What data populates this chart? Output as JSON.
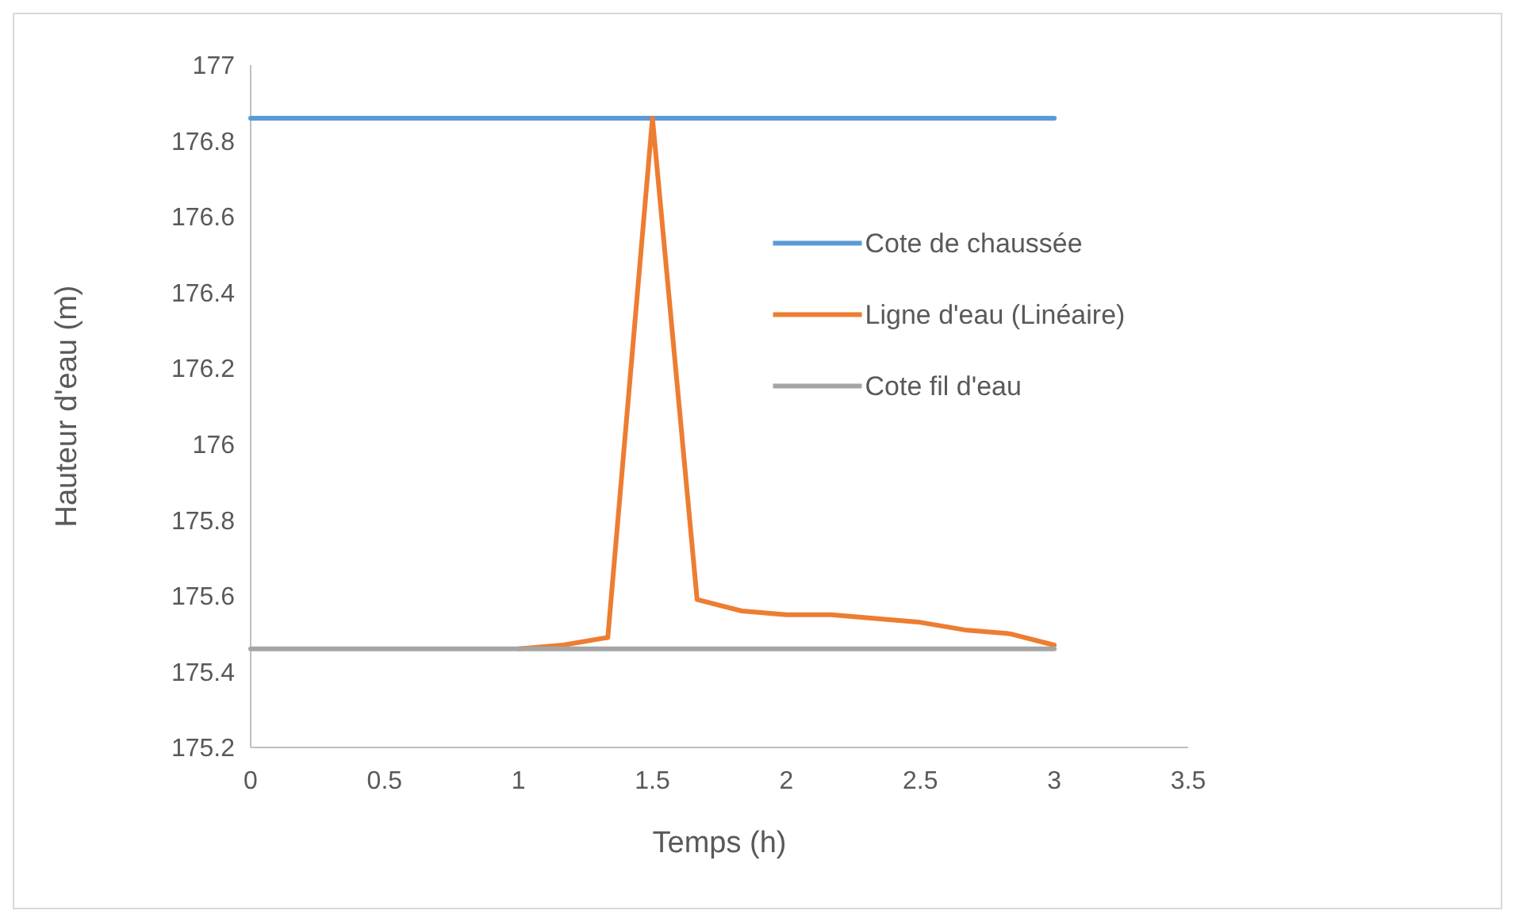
{
  "chart_data": {
    "type": "line",
    "xlabel": "Temps (h)",
    "ylabel": "Hauteur d'eau (m)",
    "xlim": [
      0,
      3.5
    ],
    "xticks": [
      0,
      0.5,
      1,
      1.5,
      2,
      2.5,
      3,
      3.5
    ],
    "ylim": [
      175.2,
      177
    ],
    "yticks": [
      175.2,
      175.4,
      175.6,
      175.8,
      176,
      176.2,
      176.4,
      176.6,
      176.8,
      177
    ],
    "grid": false,
    "legend": "right",
    "marker": "none",
    "line_style": "solid",
    "series": [
      {
        "name": "Cote de chaussée",
        "color": "#5b9bd5",
        "x": [
          0,
          3
        ],
        "values": [
          176.86,
          176.86
        ]
      },
      {
        "name": "Ligne d'eau (Linéaire)",
        "color": "#ed7d31",
        "x": [
          1,
          1.1667,
          1.3333,
          1.5,
          1.6667,
          1.8333,
          2,
          2.1667,
          2.3333,
          2.5,
          2.6667,
          2.8333,
          3
        ],
        "values": [
          175.46,
          175.47,
          175.49,
          176.86,
          175.59,
          175.56,
          175.55,
          175.55,
          175.54,
          175.53,
          175.51,
          175.5,
          175.47
        ]
      },
      {
        "name": "Cote fil d'eau",
        "color": "#a5a5a5",
        "x": [
          0,
          3
        ],
        "values": [
          175.46,
          175.46
        ]
      }
    ]
  }
}
